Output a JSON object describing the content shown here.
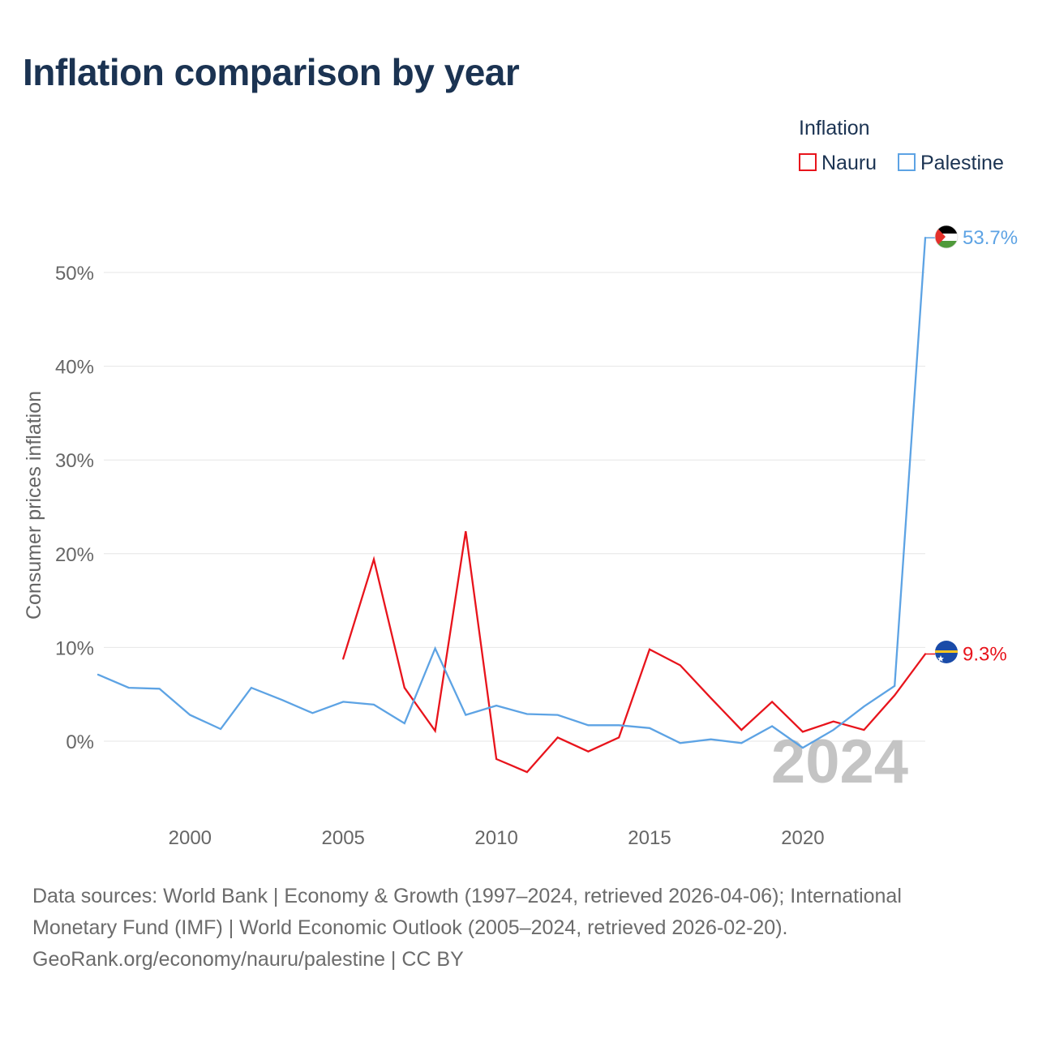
{
  "title": "Inflation comparison by year",
  "legend": {
    "title": "Inflation",
    "items": [
      {
        "label": "Nauru",
        "color": "#e8141c"
      },
      {
        "label": "Palestine",
        "color": "#5da3e4"
      }
    ]
  },
  "chart_data": {
    "type": "line",
    "title": "Inflation comparison by year",
    "xlabel": "",
    "ylabel": "Consumer prices inflation",
    "xlim": [
      1997,
      2024
    ],
    "ylim": [
      -8,
      56
    ],
    "x_ticks": [
      2000,
      2005,
      2010,
      2015,
      2020
    ],
    "y_ticks": [
      0,
      10,
      20,
      30,
      40,
      50
    ],
    "y_tick_labels": [
      "0%",
      "10%",
      "20%",
      "30%",
      "40%",
      "50%"
    ],
    "grid": true,
    "legend_position": "top-right",
    "year_watermark": "2024",
    "series": [
      {
        "name": "Nauru",
        "color": "#e8141c",
        "end_label": "9.3%",
        "flag": "nauru",
        "x": [
          2005,
          2006,
          2007,
          2008,
          2009,
          2010,
          2011,
          2012,
          2013,
          2014,
          2015,
          2016,
          2017,
          2018,
          2019,
          2020,
          2021,
          2022,
          2023,
          2024
        ],
        "values": [
          8.8,
          19.4,
          5.7,
          1.1,
          22.4,
          -1.9,
          -3.3,
          0.4,
          -1.1,
          0.4,
          9.8,
          8.1,
          4.6,
          1.2,
          4.2,
          1.0,
          2.1,
          1.2,
          4.9,
          9.3
        ]
      },
      {
        "name": "Palestine",
        "color": "#5da3e4",
        "end_label": "53.7%",
        "flag": "palestine",
        "x": [
          1997,
          1998,
          1999,
          2000,
          2001,
          2002,
          2003,
          2004,
          2005,
          2006,
          2007,
          2008,
          2009,
          2010,
          2011,
          2012,
          2013,
          2014,
          2015,
          2016,
          2017,
          2018,
          2019,
          2020,
          2021,
          2022,
          2023,
          2024
        ],
        "values": [
          7.1,
          5.7,
          5.6,
          2.8,
          1.3,
          5.7,
          4.4,
          3.0,
          4.2,
          3.9,
          1.9,
          9.9,
          2.8,
          3.8,
          2.9,
          2.8,
          1.7,
          1.7,
          1.4,
          -0.2,
          0.2,
          -0.2,
          1.6,
          -0.7,
          1.2,
          3.7,
          5.9,
          53.7
        ]
      }
    ]
  },
  "sources": {
    "line1": "Data sources: World Bank | Economy & Growth (1997–2024, retrieved 2026-04-06); International",
    "line2": "Monetary Fund (IMF) | World Economic Outlook (2005–2024, retrieved 2026-02-20).",
    "line3": "GeoRank.org/economy/nauru/palestine | CC BY"
  }
}
